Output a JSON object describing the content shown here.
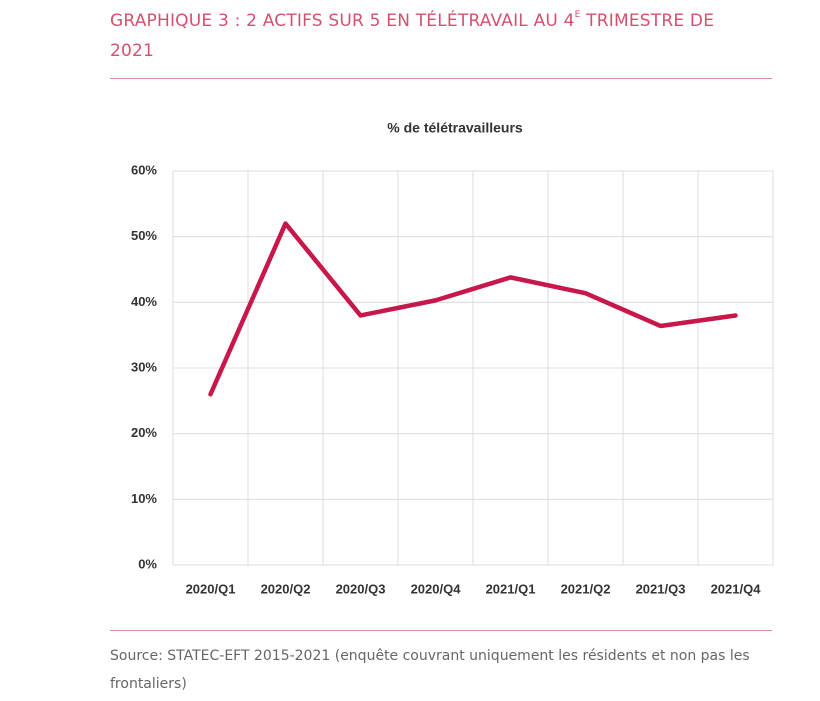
{
  "chart_data": {
    "type": "line",
    "title": [
      "GRAPHIQUE 3 : 2 ACTIFS SUR 5 EN TÉLÉTRAVAIL AU 4",
      "E",
      " TRIMESTRE DE 2021"
    ],
    "subtitle": "% de télétravailleurs",
    "categories": [
      "2020/Q1",
      "2020/Q2",
      "2020/Q3",
      "2020/Q4",
      "2021/Q1",
      "2021/Q2",
      "2021/Q3",
      "2021/Q4"
    ],
    "values": [
      26,
      52,
      38,
      40.3,
      43.8,
      41.4,
      36.4,
      38
    ],
    "color": "#c8174a",
    "ylim": [
      0,
      60
    ],
    "yticks": [
      {
        "value": 0,
        "label": "0%"
      },
      {
        "value": 10,
        "label": "10%"
      },
      {
        "value": 20,
        "label": "20%"
      },
      {
        "value": 30,
        "label": "30%"
      },
      {
        "value": 40,
        "label": "40%"
      },
      {
        "value": 50,
        "label": "50%"
      },
      {
        "value": 60,
        "label": "60%"
      }
    ],
    "grid": true,
    "source": "Source: STATEC-EFT 2015-2021 (enquête couvrant uniquement les résidents et non pas les frontaliers)"
  }
}
